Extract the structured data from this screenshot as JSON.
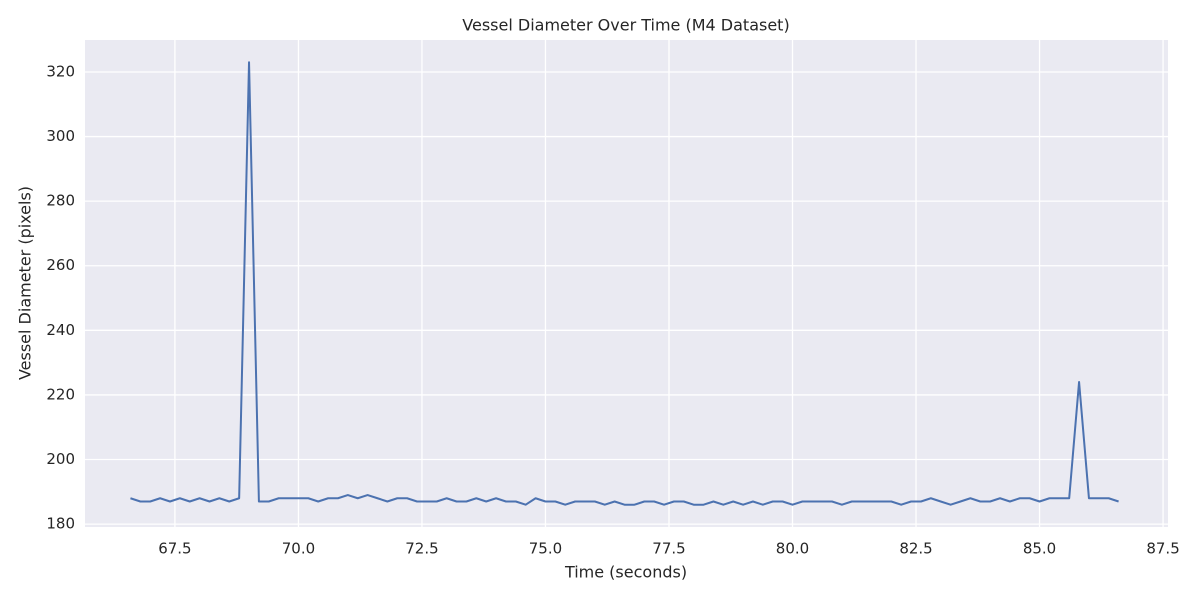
{
  "chart_data": {
    "type": "line",
    "title": "Vessel Diameter Over Time (M4 Dataset)",
    "x_label": "Time (seconds)",
    "y_label": "Vessel Diameter (pixels)",
    "x": [
      66.6,
      66.8,
      67.0,
      67.2,
      67.4,
      67.6,
      67.8,
      68.0,
      68.2,
      68.4,
      68.6,
      68.8,
      69.0,
      69.2,
      69.4,
      69.6,
      69.8,
      70.0,
      70.2,
      70.4,
      70.6,
      70.8,
      71.0,
      71.2,
      71.4,
      71.6,
      71.8,
      72.0,
      72.2,
      72.4,
      72.6,
      72.8,
      73.0,
      73.2,
      73.4,
      73.6,
      73.8,
      74.0,
      74.2,
      74.4,
      74.6,
      74.8,
      75.0,
      75.2,
      75.4,
      75.6,
      75.8,
      76.0,
      76.2,
      76.4,
      76.6,
      76.8,
      77.0,
      77.2,
      77.4,
      77.6,
      77.8,
      78.0,
      78.2,
      78.4,
      78.6,
      78.8,
      79.0,
      79.2,
      79.4,
      79.6,
      79.8,
      80.0,
      80.2,
      80.4,
      80.6,
      80.8,
      81.0,
      81.2,
      81.4,
      81.6,
      81.8,
      82.0,
      82.2,
      82.4,
      82.6,
      82.8,
      83.0,
      83.2,
      83.4,
      83.6,
      83.8,
      84.0,
      84.2,
      84.4,
      84.6,
      84.8,
      85.0,
      85.2,
      85.4,
      85.6,
      85.8,
      86.0,
      86.2,
      86.4,
      86.6
    ],
    "values": [
      188,
      187,
      187,
      188,
      187,
      188,
      187,
      188,
      187,
      188,
      187,
      188,
      323,
      187,
      187,
      188,
      188,
      188,
      188,
      187,
      188,
      188,
      189,
      188,
      189,
      188,
      187,
      188,
      188,
      187,
      187,
      187,
      188,
      187,
      187,
      188,
      187,
      188,
      187,
      187,
      186,
      188,
      187,
      187,
      186,
      187,
      187,
      187,
      186,
      187,
      186,
      186,
      187,
      187,
      186,
      187,
      187,
      186,
      186,
      187,
      186,
      187,
      186,
      187,
      186,
      187,
      187,
      186,
      187,
      187,
      187,
      187,
      186,
      187,
      187,
      187,
      187,
      187,
      186,
      187,
      187,
      188,
      187,
      186,
      187,
      188,
      187,
      187,
      188,
      187,
      188,
      188,
      187,
      188,
      188,
      188,
      224,
      188,
      188,
      188,
      187
    ],
    "color": "#4c72b0",
    "xlim": [
      65.68,
      87.6
    ],
    "ylim": [
      179.1,
      329.9
    ],
    "xticks": [
      67.5,
      {
        "value": 70,
        "label": "70.0"
      },
      72.5,
      {
        "value": 75,
        "label": "75.0"
      },
      77.5,
      {
        "value": 80,
        "label": "80.0"
      },
      82.5,
      {
        "value": 85,
        "label": "85.0"
      },
      87.5
    ],
    "yticks": [
      180,
      200,
      220,
      240,
      260,
      280,
      300,
      320
    ],
    "grid": true
  }
}
